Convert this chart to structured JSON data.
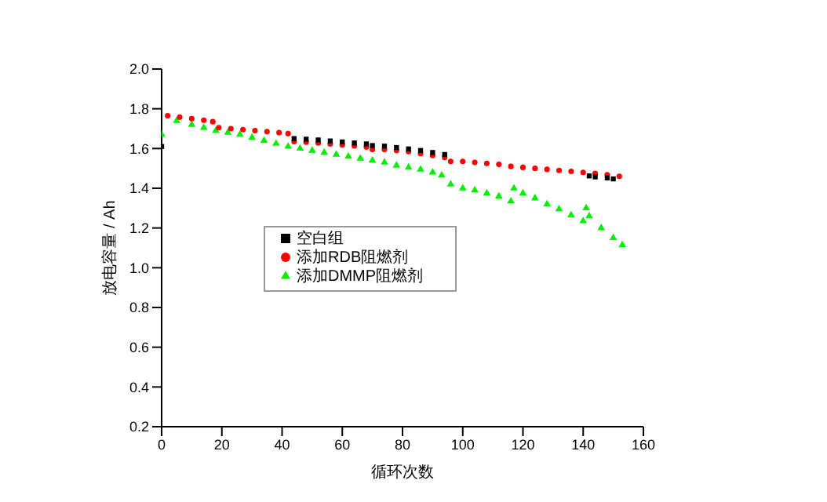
{
  "chart_data": {
    "type": "scatter",
    "xlabel": "循环次数",
    "ylabel": "放电容量 / Ah",
    "xlim": [
      0,
      160
    ],
    "ylim": [
      0.2,
      2.0
    ],
    "xticks": [
      0,
      20,
      40,
      60,
      80,
      100,
      120,
      140,
      160
    ],
    "yticks": [
      0.2,
      0.4,
      0.6,
      0.8,
      {
        "value": 1,
        "label": "1.0"
      },
      1.2,
      1.4,
      1.6,
      1.8,
      {
        "value": 2,
        "label": "2.0"
      }
    ],
    "legend": "left",
    "series": [
      {
        "name": "空白组",
        "color": "#000000",
        "marker": "square",
        "x": [
          0,
          44,
          48,
          52,
          56,
          60,
          64,
          68,
          70,
          74,
          78,
          82,
          86,
          90,
          94,
          142,
          144,
          148,
          150
        ],
        "values": [
          1.61,
          1.65,
          1.647,
          1.643,
          1.638,
          1.633,
          1.628,
          1.623,
          1.615,
          1.612,
          1.605,
          1.598,
          1.59,
          1.58,
          1.57,
          1.462,
          1.457,
          1.452,
          1.447
        ]
      },
      {
        "name": "添加RDB阻燃剂",
        "color": "#ff0000",
        "marker": "circle",
        "x": [
          2,
          6,
          10,
          14,
          17,
          19,
          23,
          27,
          31,
          35,
          39,
          42,
          44,
          48,
          52,
          56,
          60,
          64,
          68,
          70,
          74,
          78,
          82,
          86,
          90,
          94,
          96,
          100,
          104,
          108,
          112,
          116,
          120,
          124,
          128,
          132,
          136,
          140,
          144,
          148,
          152
        ],
        "values": [
          1.765,
          1.758,
          1.75,
          1.742,
          1.735,
          1.705,
          1.7,
          1.695,
          1.69,
          1.685,
          1.68,
          1.675,
          1.635,
          1.632,
          1.628,
          1.623,
          1.618,
          1.613,
          1.608,
          1.595,
          1.595,
          1.59,
          1.585,
          1.575,
          1.565,
          1.555,
          1.535,
          1.535,
          1.53,
          1.525,
          1.52,
          1.51,
          1.505,
          1.5,
          1.495,
          1.49,
          1.485,
          1.48,
          1.475,
          1.468,
          1.46
        ]
      },
      {
        "name": "添加DMMP阻燃剂",
        "color": "#00ee00",
        "marker": "triangle",
        "x": [
          0,
          5,
          10,
          14,
          18,
          22,
          26,
          30,
          34,
          38,
          42,
          46,
          50,
          54,
          58,
          62,
          66,
          70,
          74,
          78,
          82,
          86,
          90,
          93,
          96,
          100,
          104,
          108,
          112,
          116,
          117,
          120,
          124,
          128,
          132,
          136,
          140,
          141,
          142,
          146,
          150,
          153
        ],
        "values": [
          1.67,
          1.74,
          1.72,
          1.705,
          1.69,
          1.68,
          1.67,
          1.655,
          1.64,
          1.625,
          1.61,
          1.6,
          1.59,
          1.58,
          1.57,
          1.56,
          1.55,
          1.54,
          1.53,
          1.515,
          1.505,
          1.495,
          1.48,
          1.465,
          1.42,
          1.4,
          1.39,
          1.375,
          1.36,
          1.335,
          1.4,
          1.375,
          1.35,
          1.32,
          1.295,
          1.265,
          1.235,
          1.3,
          1.26,
          1.2,
          1.15,
          1.115
        ]
      }
    ]
  }
}
